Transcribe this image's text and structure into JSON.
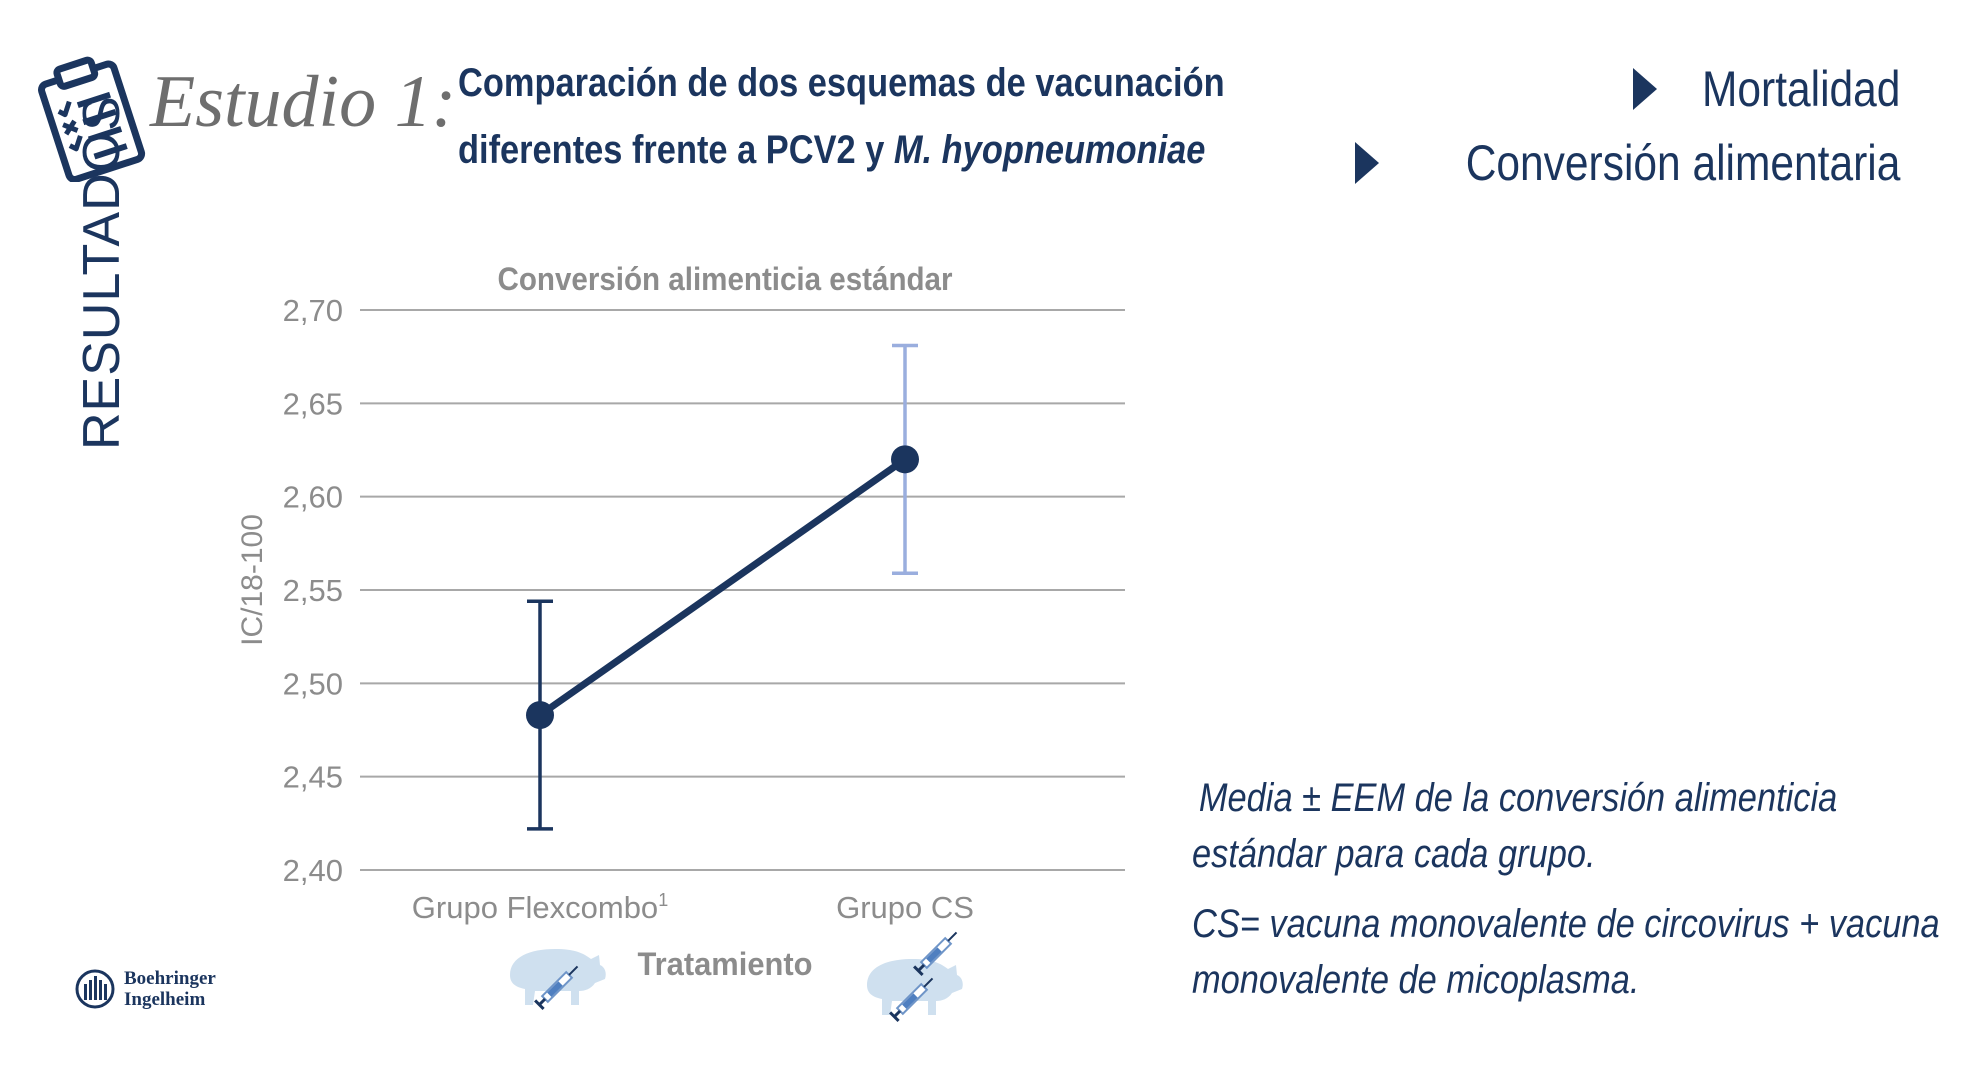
{
  "header": {
    "study_label": "Estudio 1:",
    "title_line1": "Comparación de dos esquemas de vacunación",
    "title_line2_prefix": "diferentes frente a PCV2 y ",
    "title_line2_italic": "M. hyopneumoniae"
  },
  "nav": {
    "items": [
      {
        "label": "Mortalidad"
      },
      {
        "label": "Conversión alimentaria"
      }
    ]
  },
  "side_label": "RESULTADOS",
  "chart_data": {
    "type": "line",
    "title": "Conversión alimenticia estándar",
    "xlabel": "Tratamiento",
    "ylabel": "IC/18-100",
    "ylim": [
      2.4,
      2.7
    ],
    "yticks": [
      "2,70",
      "2,65",
      "2,60",
      "2,55",
      "2,50",
      "2,45",
      "2,40"
    ],
    "ytick_values": [
      2.7,
      2.65,
      2.6,
      2.55,
      2.5,
      2.45,
      2.4
    ],
    "grid": true,
    "categories": [
      "Grupo Flexcombo",
      "Grupo CS"
    ],
    "category_superscripts": [
      "1",
      ""
    ],
    "series": [
      {
        "name": "Media",
        "values": [
          2.483,
          2.62
        ],
        "error_low": [
          2.422,
          2.559
        ],
        "error_high": [
          2.544,
          2.681
        ],
        "error_colors": [
          "#1b355e",
          "#9aaede"
        ]
      }
    ]
  },
  "caption": {
    "line1": "Media ± EEM de la conversión alimenticia",
    "line2": "estándar para cada grupo.",
    "line3": "CS= vacuna monovalente de circovirus + vacuna",
    "line4": "monovalente de micoplasma."
  },
  "logo": {
    "line1": "Boehringer",
    "line2": "Ingelheim"
  },
  "colors": {
    "navy": "#1b355e",
    "gray_text": "#8c8c8c",
    "grid": "#a8a8a8",
    "light_blue": "#9aaede",
    "pig": "#cfe0ef"
  }
}
